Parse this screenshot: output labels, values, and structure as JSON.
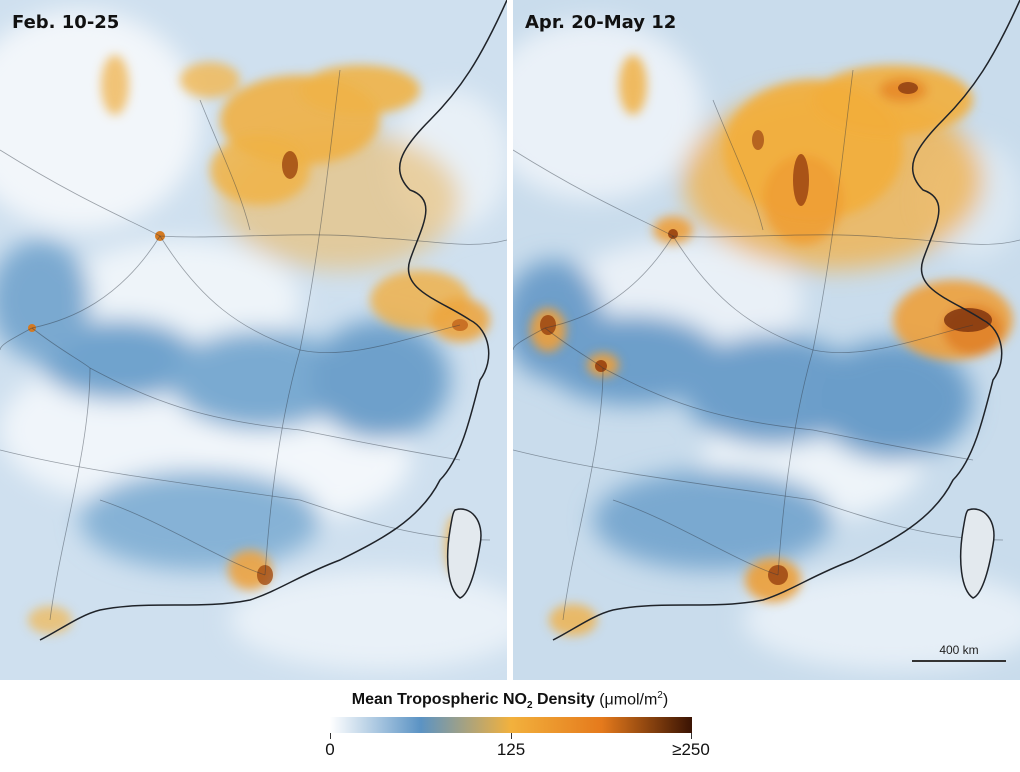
{
  "panels": [
    {
      "title": "Feb. 10-25"
    },
    {
      "title": "Apr. 20-May 12"
    }
  ],
  "scale_bar": {
    "label": "400 km"
  },
  "legend": {
    "title_main": "Mean Tropospheric NO",
    "title_sub": "2",
    "title_rest": " Density ",
    "unit_pre": "(μmol/m",
    "unit_sup": "2",
    "unit_post": ")",
    "ticks": [
      "0",
      "125",
      "≥250"
    ],
    "tick_values": [
      0,
      125,
      250
    ],
    "colors": [
      "#ffffff",
      "#5b93c4",
      "#f2b13d",
      "#e57a1c",
      "#3a1303"
    ]
  }
}
